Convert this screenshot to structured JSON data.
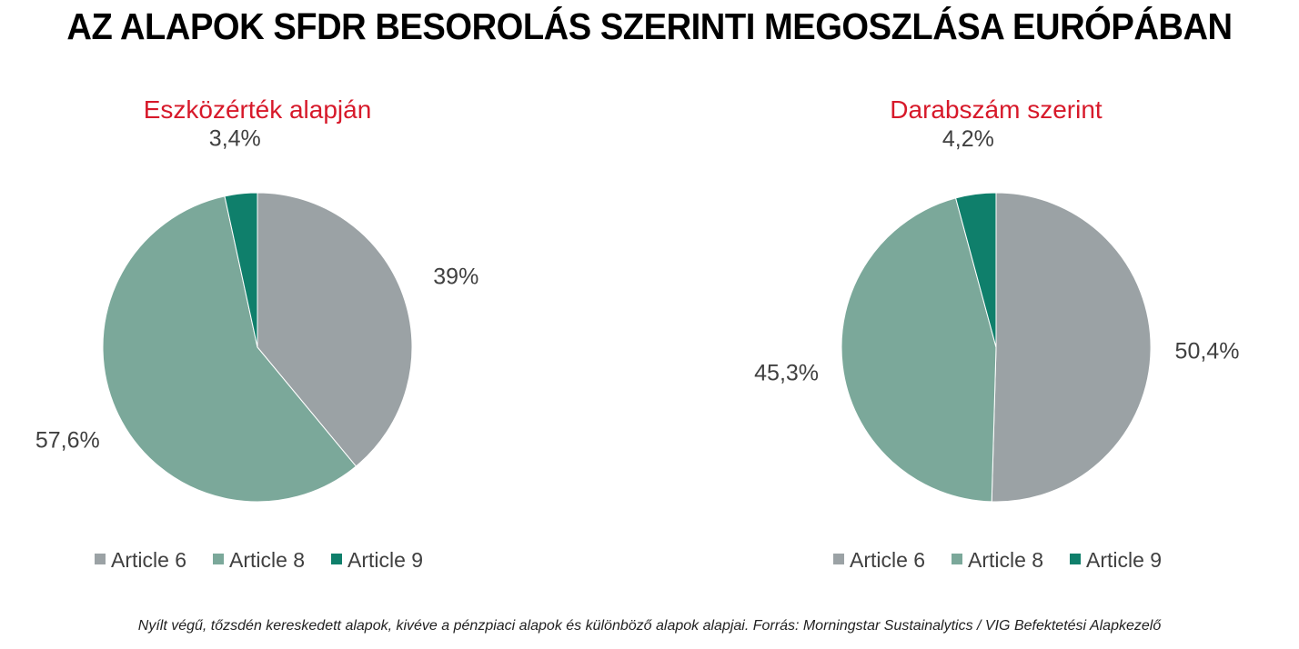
{
  "title": "AZ ALAPOK SFDR BESOROLÁS SZERINTI MEGOSZLÁSA EURÓPÁBAN",
  "footnote": "Nyílt végű, tőzsdén kereskedett alapok, kivéve a pénzpiaci alapok és különböző alapok alapjai. Forrás: Morningstar Sustainalytics / VIG Befektetési Alapkezelő",
  "colors": {
    "article6": "#9BA2A5",
    "article8": "#7BA89A",
    "article9": "#0F7F6B",
    "subtitle": "#D7192A",
    "label": "#404040"
  },
  "chart_data": [
    {
      "type": "pie",
      "title": "Eszközérték alapján",
      "categories": [
        "Article 6",
        "Article 8",
        "Article 9"
      ],
      "values": [
        39,
        57.6,
        3.4
      ],
      "labels": [
        "39%",
        "57,6%",
        "3,4%"
      ],
      "legend": "bottom"
    },
    {
      "type": "pie",
      "title": "Darabszám szerint",
      "categories": [
        "Article 6",
        "Article 8",
        "Article 9"
      ],
      "values": [
        50.4,
        45.3,
        4.2
      ],
      "labels": [
        "50,4%",
        "45,3%",
        "4,2%"
      ],
      "legend": "bottom"
    }
  ]
}
